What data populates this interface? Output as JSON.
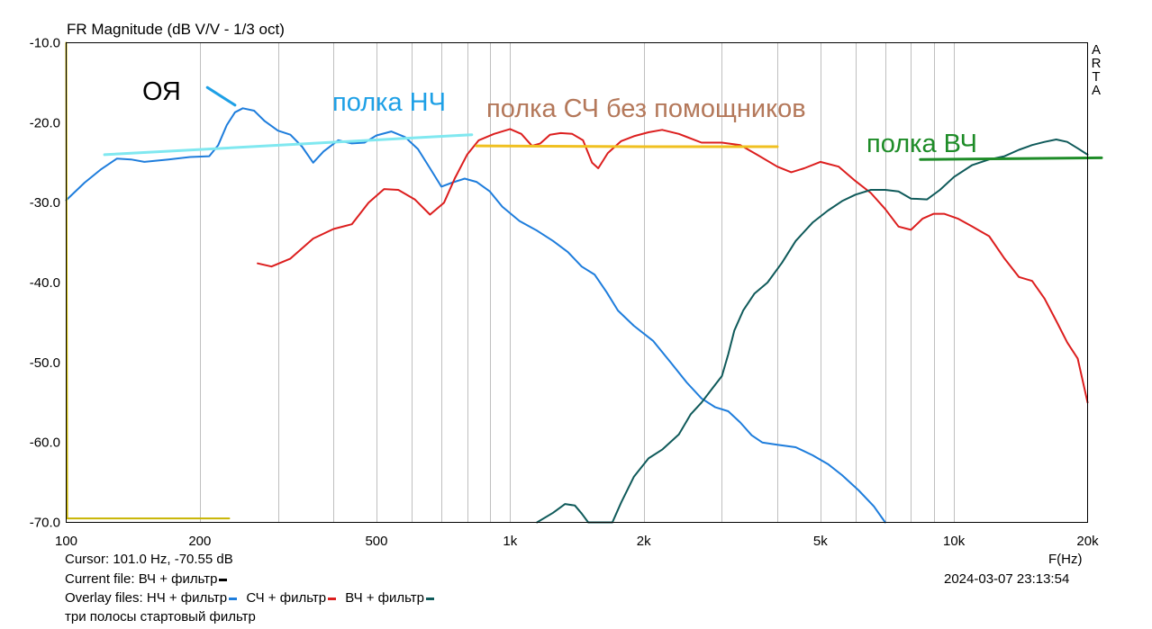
{
  "title": "FR Magnitude (dB V/V - 1/3 oct)",
  "side_label": [
    "A",
    "R",
    "T",
    "A"
  ],
  "x_axis_label": "F(Hz)",
  "cursor_text": "Cursor: 101.0 Hz, -70.55 dB",
  "current_file": {
    "label": "Current file:",
    "name": "ВЧ + фильтр",
    "color": "#000000"
  },
  "overlay_label": "Overlay files:",
  "overlays": [
    {
      "name": "НЧ + фильтр",
      "color": "#1e7ddc"
    },
    {
      "name": "СЧ + фильтр",
      "color": "#dc1e1e"
    },
    {
      "name": "ВЧ + фильтр",
      "color": "#0f5a5a"
    }
  ],
  "project_name": "три полосы стартовый фильтр",
  "timestamp": "2024-03-07   23:13:54",
  "annotations": [
    {
      "text": "ОЯ",
      "color": "#000000"
    },
    {
      "text": "полка НЧ",
      "color": "#1ea0e6"
    },
    {
      "text": "полка СЧ без помощников",
      "color": "#b4785a"
    },
    {
      "text": "полка ВЧ",
      "color": "#1e8c28"
    }
  ],
  "chart_data": {
    "type": "line",
    "title": "FR Magnitude (dB V/V - 1/3 oct)",
    "xlabel": "F(Hz)",
    "ylabel": "",
    "x_scale": "log",
    "xlim": [
      100,
      20000
    ],
    "ylim": [
      -70,
      -10
    ],
    "grid": true,
    "x_tick_labels": [
      {
        "value": 100,
        "label": "100"
      },
      {
        "value": 200,
        "label": "200"
      },
      {
        "value": 500,
        "label": "500"
      },
      {
        "value": 1000,
        "label": "1k"
      },
      {
        "value": 2000,
        "label": "2k"
      },
      {
        "value": 5000,
        "label": "5k"
      },
      {
        "value": 10000,
        "label": "10k"
      },
      {
        "value": 20000,
        "label": "20k"
      }
    ],
    "y_tick_labels": [
      {
        "value": -10,
        "label": "-10.0"
      },
      {
        "value": -20,
        "label": "-20.0"
      },
      {
        "value": -30,
        "label": "-30.0"
      },
      {
        "value": -40,
        "label": "-40.0"
      },
      {
        "value": -50,
        "label": "-50.0"
      },
      {
        "value": -60,
        "label": "-60.0"
      },
      {
        "value": -70,
        "label": "-70.0"
      }
    ],
    "series": [
      {
        "name": "НЧ + фильтр",
        "color": "#1e7ddc",
        "points": [
          [
            100,
            -29.7
          ],
          [
            110,
            -27.5
          ],
          [
            120,
            -25.8
          ],
          [
            130,
            -24.5
          ],
          [
            140,
            -24.6
          ],
          [
            150,
            -24.9
          ],
          [
            170,
            -24.6
          ],
          [
            190,
            -24.3
          ],
          [
            210,
            -24.2
          ],
          [
            220,
            -22.8
          ],
          [
            230,
            -20.3
          ],
          [
            240,
            -18.7
          ],
          [
            250,
            -18.2
          ],
          [
            265,
            -18.5
          ],
          [
            280,
            -19.8
          ],
          [
            300,
            -21.0
          ],
          [
            320,
            -21.5
          ],
          [
            340,
            -23.0
          ],
          [
            360,
            -25.0
          ],
          [
            380,
            -23.6
          ],
          [
            410,
            -22.2
          ],
          [
            440,
            -22.6
          ],
          [
            470,
            -22.5
          ],
          [
            500,
            -21.6
          ],
          [
            540,
            -21.1
          ],
          [
            580,
            -21.8
          ],
          [
            620,
            -23.3
          ],
          [
            660,
            -25.7
          ],
          [
            700,
            -28.0
          ],
          [
            740,
            -27.5
          ],
          [
            790,
            -27.0
          ],
          [
            840,
            -27.4
          ],
          [
            900,
            -28.6
          ],
          [
            960,
            -30.5
          ],
          [
            1050,
            -32.3
          ],
          [
            1150,
            -33.5
          ],
          [
            1250,
            -34.8
          ],
          [
            1350,
            -36.2
          ],
          [
            1450,
            -38.0
          ],
          [
            1550,
            -39.0
          ],
          [
            1650,
            -41.2
          ],
          [
            1750,
            -43.5
          ],
          [
            1900,
            -45.4
          ],
          [
            2100,
            -47.3
          ],
          [
            2300,
            -50.0
          ],
          [
            2500,
            -52.5
          ],
          [
            2700,
            -54.5
          ],
          [
            2900,
            -55.6
          ],
          [
            3100,
            -56.1
          ],
          [
            3300,
            -57.5
          ],
          [
            3500,
            -59.1
          ],
          [
            3700,
            -60.0
          ],
          [
            4000,
            -60.3
          ],
          [
            4400,
            -60.6
          ],
          [
            4800,
            -61.6
          ],
          [
            5200,
            -62.7
          ],
          [
            5600,
            -64.1
          ],
          [
            6100,
            -66.0
          ],
          [
            6600,
            -68.0
          ],
          [
            7000,
            -70.0
          ]
        ]
      },
      {
        "name": "СЧ + фильтр",
        "color": "#dc1e1e",
        "points": [
          [
            270,
            -37.6
          ],
          [
            290,
            -38.0
          ],
          [
            320,
            -37.0
          ],
          [
            360,
            -34.5
          ],
          [
            400,
            -33.3
          ],
          [
            440,
            -32.7
          ],
          [
            480,
            -30.0
          ],
          [
            520,
            -28.3
          ],
          [
            560,
            -28.4
          ],
          [
            610,
            -29.6
          ],
          [
            660,
            -31.5
          ],
          [
            710,
            -30.0
          ],
          [
            750,
            -27.0
          ],
          [
            800,
            -24.0
          ],
          [
            850,
            -22.2
          ],
          [
            920,
            -21.4
          ],
          [
            1000,
            -20.8
          ],
          [
            1060,
            -21.4
          ],
          [
            1120,
            -22.9
          ],
          [
            1170,
            -22.6
          ],
          [
            1230,
            -21.5
          ],
          [
            1300,
            -21.3
          ],
          [
            1380,
            -21.4
          ],
          [
            1460,
            -22.2
          ],
          [
            1530,
            -25.0
          ],
          [
            1580,
            -25.7
          ],
          [
            1660,
            -23.8
          ],
          [
            1780,
            -22.3
          ],
          [
            1900,
            -21.7
          ],
          [
            2050,
            -21.2
          ],
          [
            2200,
            -20.9
          ],
          [
            2400,
            -21.4
          ],
          [
            2700,
            -22.5
          ],
          [
            3000,
            -22.5
          ],
          [
            3300,
            -22.8
          ],
          [
            3600,
            -24.0
          ],
          [
            4000,
            -25.5
          ],
          [
            4300,
            -26.2
          ],
          [
            4600,
            -25.7
          ],
          [
            5000,
            -24.9
          ],
          [
            5500,
            -25.5
          ],
          [
            6000,
            -27.3
          ],
          [
            6500,
            -28.8
          ],
          [
            7000,
            -30.8
          ],
          [
            7500,
            -33.0
          ],
          [
            8000,
            -33.4
          ],
          [
            8500,
            -32.0
          ],
          [
            9000,
            -31.4
          ],
          [
            9500,
            -31.4
          ],
          [
            10200,
            -32.0
          ],
          [
            11000,
            -33.0
          ],
          [
            12000,
            -34.2
          ],
          [
            13000,
            -37.0
          ],
          [
            14000,
            -39.3
          ],
          [
            15000,
            -39.8
          ],
          [
            16000,
            -42.0
          ],
          [
            17000,
            -44.8
          ],
          [
            18000,
            -47.5
          ],
          [
            19000,
            -49.5
          ],
          [
            20000,
            -55.0
          ]
        ]
      },
      {
        "name": "ВЧ + фильтр",
        "color": "#0f5a5a",
        "points": [
          [
            1150,
            -70.0
          ],
          [
            1250,
            -68.8
          ],
          [
            1330,
            -67.7
          ],
          [
            1400,
            -67.9
          ],
          [
            1450,
            -68.9
          ],
          [
            1500,
            -70.0
          ],
          [
            1700,
            -70.0
          ],
          [
            1780,
            -67.5
          ],
          [
            1900,
            -64.3
          ],
          [
            2050,
            -62.0
          ],
          [
            2200,
            -60.9
          ],
          [
            2400,
            -59.0
          ],
          [
            2550,
            -56.5
          ],
          [
            2700,
            -55.0
          ],
          [
            2850,
            -53.3
          ],
          [
            3000,
            -51.7
          ],
          [
            3100,
            -49.0
          ],
          [
            3200,
            -46.0
          ],
          [
            3350,
            -43.5
          ],
          [
            3550,
            -41.4
          ],
          [
            3800,
            -40.0
          ],
          [
            4100,
            -37.5
          ],
          [
            4400,
            -34.8
          ],
          [
            4800,
            -32.5
          ],
          [
            5200,
            -31.0
          ],
          [
            5600,
            -29.8
          ],
          [
            6000,
            -29.0
          ],
          [
            6500,
            -28.4
          ],
          [
            7000,
            -28.4
          ],
          [
            7500,
            -28.6
          ],
          [
            8000,
            -29.5
          ],
          [
            8700,
            -29.6
          ],
          [
            9300,
            -28.4
          ],
          [
            10000,
            -26.8
          ],
          [
            11000,
            -25.3
          ],
          [
            12000,
            -24.6
          ],
          [
            13000,
            -24.2
          ],
          [
            14000,
            -23.4
          ],
          [
            15000,
            -22.8
          ],
          [
            16000,
            -22.4
          ],
          [
            17000,
            -22.1
          ],
          [
            18000,
            -22.4
          ],
          [
            19000,
            -23.2
          ],
          [
            20000,
            -24.0
          ]
        ]
      },
      {
        "name": "",
        "color": "#c8b400",
        "points": [
          [
            100,
            -10.0
          ],
          [
            100.5,
            -69.5
          ],
          [
            101,
            -69.5
          ],
          [
            233,
            -69.5
          ]
        ]
      }
    ],
    "guide_lines": [
      {
        "color": "#80e8f0",
        "points": [
          [
            122,
            -24.0
          ],
          [
            820,
            -21.5
          ]
        ]
      },
      {
        "color": "#f0c020",
        "points": [
          [
            840,
            -22.9
          ],
          [
            2000,
            -23.0
          ],
          [
            4000,
            -23.0
          ]
        ]
      },
      {
        "color": "#1e8c28",
        "points": [
          [
            8400,
            -24.6
          ],
          [
            21500,
            -24.4
          ]
        ]
      },
      {
        "color": "#1ea0e6",
        "points": [
          [
            208,
            -15.6
          ],
          [
            240,
            -17.8
          ]
        ]
      }
    ]
  }
}
